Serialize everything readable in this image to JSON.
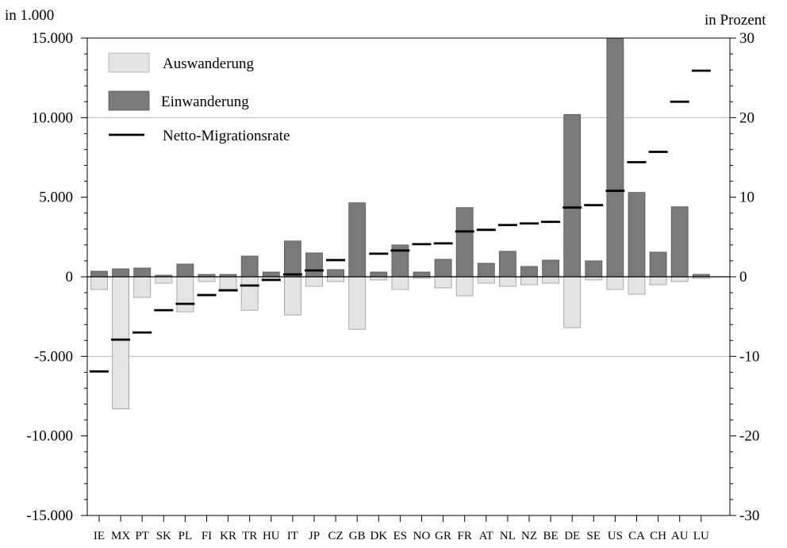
{
  "left_axis_title": "in 1.000",
  "right_axis_title": "in Prozent",
  "chart_data": {
    "type": "bar",
    "categories": [
      "IE",
      "MX",
      "PT",
      "SK",
      "PL",
      "FI",
      "KR",
      "TR",
      "HU",
      "IT",
      "JP",
      "CZ",
      "GB",
      "DK",
      "ES",
      "NO",
      "GR",
      "FR",
      "AT",
      "NL",
      "NZ",
      "BE",
      "DE",
      "SE",
      "US",
      "CA",
      "CH",
      "AU",
      "LU"
    ],
    "series": [
      {
        "name": "Auswanderung",
        "color": "#e3e3e3",
        "values": [
          -800,
          -8300,
          -1300,
          -400,
          -2200,
          -300,
          -900,
          -2100,
          -200,
          -2400,
          -600,
          -300,
          -3300,
          -200,
          -800,
          -100,
          -700,
          -1200,
          -400,
          -600,
          -500,
          -400,
          -3200,
          -200,
          -800,
          -1100,
          -500,
          -300,
          -100
        ]
      },
      {
        "name": "Einwanderung",
        "color": "#7a7a7a",
        "values": [
          350,
          500,
          550,
          100,
          800,
          150,
          150,
          1300,
          300,
          2250,
          1500,
          450,
          4650,
          300,
          2000,
          300,
          1100,
          4350,
          850,
          1600,
          650,
          1050,
          10200,
          1000,
          15000,
          5300,
          1550,
          4400,
          150
        ]
      },
      {
        "name": "Netto-Migrationsrate",
        "color": "#000000",
        "axis": "right",
        "values": [
          -11.9,
          -7.9,
          -7.0,
          -4.2,
          -3.4,
          -2.3,
          -1.7,
          -1.1,
          -0.4,
          0.3,
          0.8,
          2.1,
          null,
          2.9,
          3.3,
          4.1,
          4.2,
          5.7,
          5.9,
          6.5,
          6.7,
          6.9,
          8.7,
          9.0,
          10.8,
          14.4,
          15.7,
          22.0,
          25.9
        ]
      }
    ],
    "ylim_left": [
      -15000,
      15000
    ],
    "yticks_left": [
      "15.000",
      "10.000",
      "5.000",
      "0",
      "-5.000",
      "-10.000",
      "-15.000"
    ],
    "ylim_right": [
      -30,
      30
    ],
    "yticks_right": [
      "30",
      "20",
      "10",
      "0",
      "-10",
      "-20",
      "-30"
    ],
    "gridlines_at": [
      10000,
      -5000
    ],
    "legend": "top-left"
  }
}
